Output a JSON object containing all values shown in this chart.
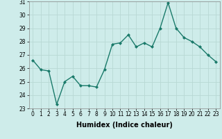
{
  "x": [
    0,
    1,
    2,
    3,
    4,
    5,
    6,
    7,
    8,
    9,
    10,
    11,
    12,
    13,
    14,
    15,
    16,
    17,
    18,
    19,
    20,
    21,
    22,
    23
  ],
  "y": [
    26.6,
    25.9,
    25.8,
    23.3,
    25.0,
    25.4,
    24.7,
    24.7,
    24.6,
    25.9,
    27.8,
    27.9,
    28.5,
    27.6,
    27.9,
    27.6,
    29.0,
    30.9,
    29.0,
    28.3,
    28.0,
    27.6,
    27.0,
    26.5
  ],
  "line_color": "#1a7a6a",
  "marker": "D",
  "marker_size": 2.0,
  "linewidth": 1.0,
  "bg_color": "#ceecea",
  "grid_color": "#b8d8d4",
  "xlabel": "Humidex (Indice chaleur)",
  "ylim": [
    23,
    31
  ],
  "yticks": [
    23,
    24,
    25,
    26,
    27,
    28,
    29,
    30,
    31
  ],
  "xticks": [
    0,
    1,
    2,
    3,
    4,
    5,
    6,
    7,
    8,
    9,
    10,
    11,
    12,
    13,
    14,
    15,
    16,
    17,
    18,
    19,
    20,
    21,
    22,
    23
  ],
  "tick_fontsize": 5.5,
  "xlabel_fontsize": 7.0
}
